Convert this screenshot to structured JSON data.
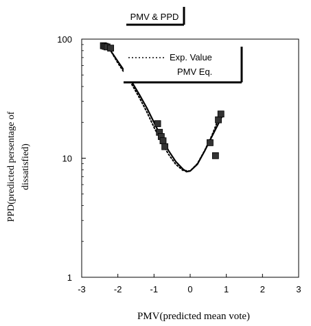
{
  "chart_data": {
    "type": "line",
    "title": "PMV & PPD",
    "xlabel": "PMV(predicted mean vote)",
    "ylabel_lines": [
      "PPD(predicted persentage of",
      "dissatisfied)"
    ],
    "x_ticks": [
      -3,
      -2,
      -1,
      0,
      1,
      2,
      3
    ],
    "y_ticks": [
      1,
      10,
      100
    ],
    "y_tick_labels": [
      "1",
      "10",
      "100"
    ],
    "xlim": [
      -3,
      3
    ],
    "ylim": [
      1,
      100
    ],
    "y_scale": "log",
    "grid": false,
    "legend_position": "top-right",
    "series": [
      {
        "name": "Exp. Value",
        "style": "dotted",
        "x": [
          -2.4,
          -2.2,
          -2.0,
          -1.8,
          -1.6,
          -1.4,
          -1.2,
          -1.0,
          -0.8,
          -0.6,
          -0.4,
          -0.2,
          0.0,
          0.2,
          0.4,
          0.6,
          0.8
        ],
        "y": [
          86,
          80,
          63,
          51,
          41,
          32,
          24.5,
          18.2,
          13.8,
          10.8,
          8.9,
          7.9,
          7.8,
          9.0,
          11.6,
          15.5,
          22
        ]
      },
      {
        "name": "PMV Eq.",
        "style": "solid",
        "x": [
          -2.4,
          -2.2,
          -2.0,
          -1.8,
          -1.6,
          -1.4,
          -1.2,
          -1.0,
          -0.8,
          -0.6,
          -0.4,
          -0.2,
          -0.1,
          0.0,
          0.2,
          0.4,
          0.6,
          0.8,
          0.9
        ],
        "y": [
          90,
          80,
          65,
          53,
          43,
          34,
          26.5,
          20,
          15,
          11.6,
          9.4,
          8.1,
          7.7,
          7.8,
          8.9,
          11.5,
          15.2,
          20,
          23
        ]
      },
      {
        "name": "",
        "style": "markers",
        "x": [
          -2.4,
          -2.35,
          -2.3,
          -2.2,
          -0.9,
          -0.85,
          -0.8,
          -0.75,
          -0.7,
          0.55,
          0.7,
          0.78,
          0.85
        ],
        "y": [
          88,
          87,
          86,
          84,
          19.5,
          16.5,
          15.2,
          14,
          12.5,
          13.5,
          10.5,
          21,
          23.5
        ]
      }
    ]
  }
}
